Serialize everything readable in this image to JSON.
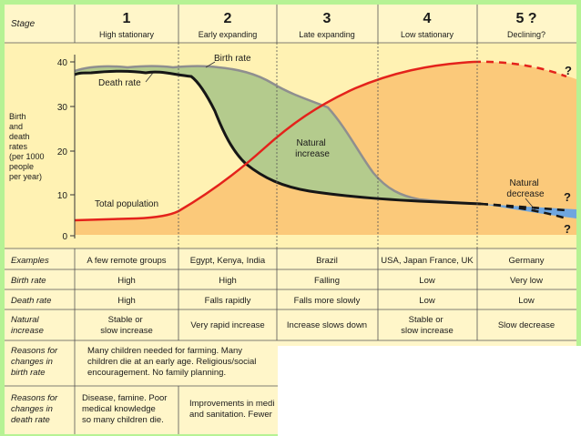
{
  "stages": [
    {
      "num": "1",
      "name": "High stationary"
    },
    {
      "num": "2",
      "name": "Early expanding"
    },
    {
      "num": "3",
      "name": "Late expanding"
    },
    {
      "num": "4",
      "name": "Low stationary"
    },
    {
      "num": "5 ?",
      "name": "Declining?"
    }
  ],
  "stage_header": "Stage",
  "y_axis": {
    "label_lines": [
      "Birth",
      "and",
      "death",
      "rates",
      "(per 1000",
      "people",
      "per year)"
    ],
    "ticks": [
      "40",
      "30",
      "20",
      "10",
      "0"
    ]
  },
  "annotations": {
    "birth_rate": "Birth rate",
    "death_rate": "Death rate",
    "total_population": "Total population",
    "natural_increase": [
      "Natural",
      "increase"
    ],
    "natural_decrease": [
      "Natural",
      "decrease"
    ],
    "question_mark": "?"
  },
  "colors": {
    "background": "#b6f294",
    "header_bg": "#fff6c9",
    "plot_bg": "#fff2b3",
    "population_fill": "#fbc97a",
    "increase_fill": "#b4cb8d",
    "decrease_fill": "#6fa6df",
    "birth_line": "#8f8f8f",
    "death_line": "#161616",
    "population_line": "#e4221b"
  },
  "table": {
    "rows": [
      {
        "label": [
          "Examples"
        ],
        "cells": [
          "A few remote groups",
          "Egypt, Kenya, India",
          "Brazil",
          "USA, Japan France, UK",
          "Germany"
        ]
      },
      {
        "label": [
          "Birth rate"
        ],
        "cells": [
          "High",
          "High",
          "Falling",
          "Low",
          "Very low"
        ]
      },
      {
        "label": [
          "Death rate"
        ],
        "cells": [
          "High",
          "Falls rapidly",
          "Falls more slowly",
          "Low",
          "Low"
        ]
      },
      {
        "label": [
          "Natural",
          "increase"
        ],
        "cells": [
          [
            "Stable or",
            "slow increase"
          ],
          [
            "Very rapid increase"
          ],
          [
            "Increase slows down"
          ],
          [
            "Stable or",
            "slow increase"
          ],
          [
            "Slow decrease"
          ]
        ]
      }
    ],
    "reasons_birth": {
      "label": [
        "Reasons for",
        "changes in",
        "birth rate"
      ],
      "text": [
        "Many children needed for farming. Many",
        "children die at an early age. Religious/social",
        "encouragement. No family planning."
      ]
    },
    "reasons_death": {
      "label": [
        "Reasons for",
        "changes in",
        "death rate"
      ],
      "col1": [
        "Disease, famine. Poor",
        "medical knowledge",
        "so many children die."
      ],
      "col2": [
        "Improvements in medi",
        "and sanitation. Fewer"
      ]
    }
  }
}
